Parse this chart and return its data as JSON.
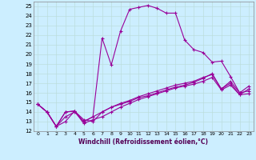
{
  "xlabel": "Windchill (Refroidissement éolien,°C)",
  "background_color": "#cceeff",
  "line_color": "#990099",
  "grid_color": "#bbdddd",
  "xlim": [
    -0.5,
    23.5
  ],
  "ylim": [
    12,
    25.5
  ],
  "yticks": [
    12,
    13,
    14,
    15,
    16,
    17,
    18,
    19,
    20,
    21,
    22,
    23,
    24,
    25
  ],
  "xticks": [
    0,
    1,
    2,
    3,
    4,
    5,
    6,
    7,
    8,
    9,
    10,
    11,
    12,
    13,
    14,
    15,
    16,
    17,
    18,
    19,
    20,
    21,
    22,
    23
  ],
  "series": [
    [
      14.8,
      14.0,
      12.5,
      14.0,
      14.1,
      13.0,
      13.5,
      21.7,
      18.9,
      22.4,
      24.7,
      24.9,
      25.1,
      24.8,
      24.3,
      24.3,
      21.5,
      20.5,
      20.2,
      19.2,
      19.3,
      17.7,
      16.0,
      16.7
    ],
    [
      14.8,
      14.0,
      12.5,
      14.0,
      14.1,
      13.2,
      13.0,
      14.0,
      14.5,
      14.8,
      15.1,
      15.5,
      15.7,
      16.0,
      16.3,
      16.6,
      16.8,
      17.1,
      17.5,
      18.0,
      16.4,
      17.2,
      16.0,
      16.2
    ],
    [
      14.8,
      14.0,
      12.5,
      13.0,
      14.1,
      12.8,
      13.2,
      13.5,
      14.0,
      14.5,
      14.9,
      15.3,
      15.6,
      15.9,
      16.2,
      16.5,
      16.7,
      16.9,
      17.2,
      17.6,
      16.3,
      16.8,
      15.8,
      15.9
    ],
    [
      14.8,
      14.0,
      12.5,
      13.5,
      14.0,
      13.0,
      13.5,
      14.0,
      14.5,
      14.9,
      15.2,
      15.6,
      15.9,
      16.2,
      16.5,
      16.8,
      17.0,
      17.2,
      17.6,
      17.9,
      16.4,
      17.0,
      15.8,
      16.4
    ]
  ]
}
